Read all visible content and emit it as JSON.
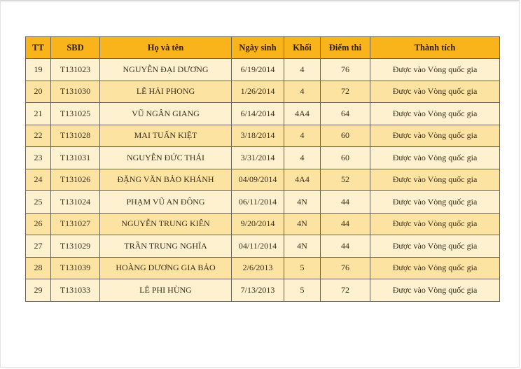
{
  "headers": [
    "TT",
    "SBD",
    "Họ và tên",
    "Ngày sinh",
    "Khối",
    "Điểm thi",
    "Thành tích"
  ],
  "rows": [
    [
      "19",
      "T131023",
      "NGUYỄN ĐẠI DƯƠNG",
      "6/19/2014",
      "4",
      "76",
      "Được vào Vòng quốc gia"
    ],
    [
      "20",
      "T131030",
      "LÊ HẢI PHONG",
      "1/26/2014",
      "4",
      "72",
      "Được vào Vòng quốc gia"
    ],
    [
      "21",
      "T131025",
      "VŨ NGÂN GIANG",
      "6/14/2014",
      "4A4",
      "64",
      "Được vào Vòng quốc gia"
    ],
    [
      "22",
      "T131028",
      "MAI TUẤN KIỆT",
      "3/18/2014",
      "4",
      "60",
      "Được vào Vòng quốc gia"
    ],
    [
      "23",
      "T131031",
      "NGUYỄN ĐỨC THÁI",
      "3/31/2014",
      "4",
      "60",
      "Được vào Vòng quốc gia"
    ],
    [
      "24",
      "T131026",
      "ĐẶNG VĂN BẢO KHÁNH",
      "04/09/2014",
      "4A4",
      "52",
      "Được vào Vòng quốc gia"
    ],
    [
      "25",
      "T131024",
      "PHẠM VŨ AN ĐÔNG",
      "06/11/2014",
      "4N",
      "44",
      "Được vào Vòng quốc gia"
    ],
    [
      "26",
      "T131027",
      "NGUYỄN TRUNG KIÊN",
      "9/20/2014",
      "4N",
      "44",
      "Được vào Vòng quốc gia"
    ],
    [
      "27",
      "T131029",
      "TRẦN TRUNG NGHĨA",
      "04/11/2014",
      "4N",
      "44",
      "Được vào Vòng quốc gia"
    ],
    [
      "28",
      "T131039",
      "HOÀNG DƯƠNG GIA BẢO",
      "2/6/2013",
      "5",
      "76",
      "Được vào Vòng quốc gia"
    ],
    [
      "29",
      "T131033",
      "LÊ PHI HÙNG",
      "7/13/2013",
      "5",
      "72",
      "Được vào Vòng quốc gia"
    ]
  ],
  "colors": {
    "header": "#f9b41b",
    "row_light": "#fdf1cf",
    "row_dark": "#fde3a2",
    "border": "#6b6256"
  }
}
